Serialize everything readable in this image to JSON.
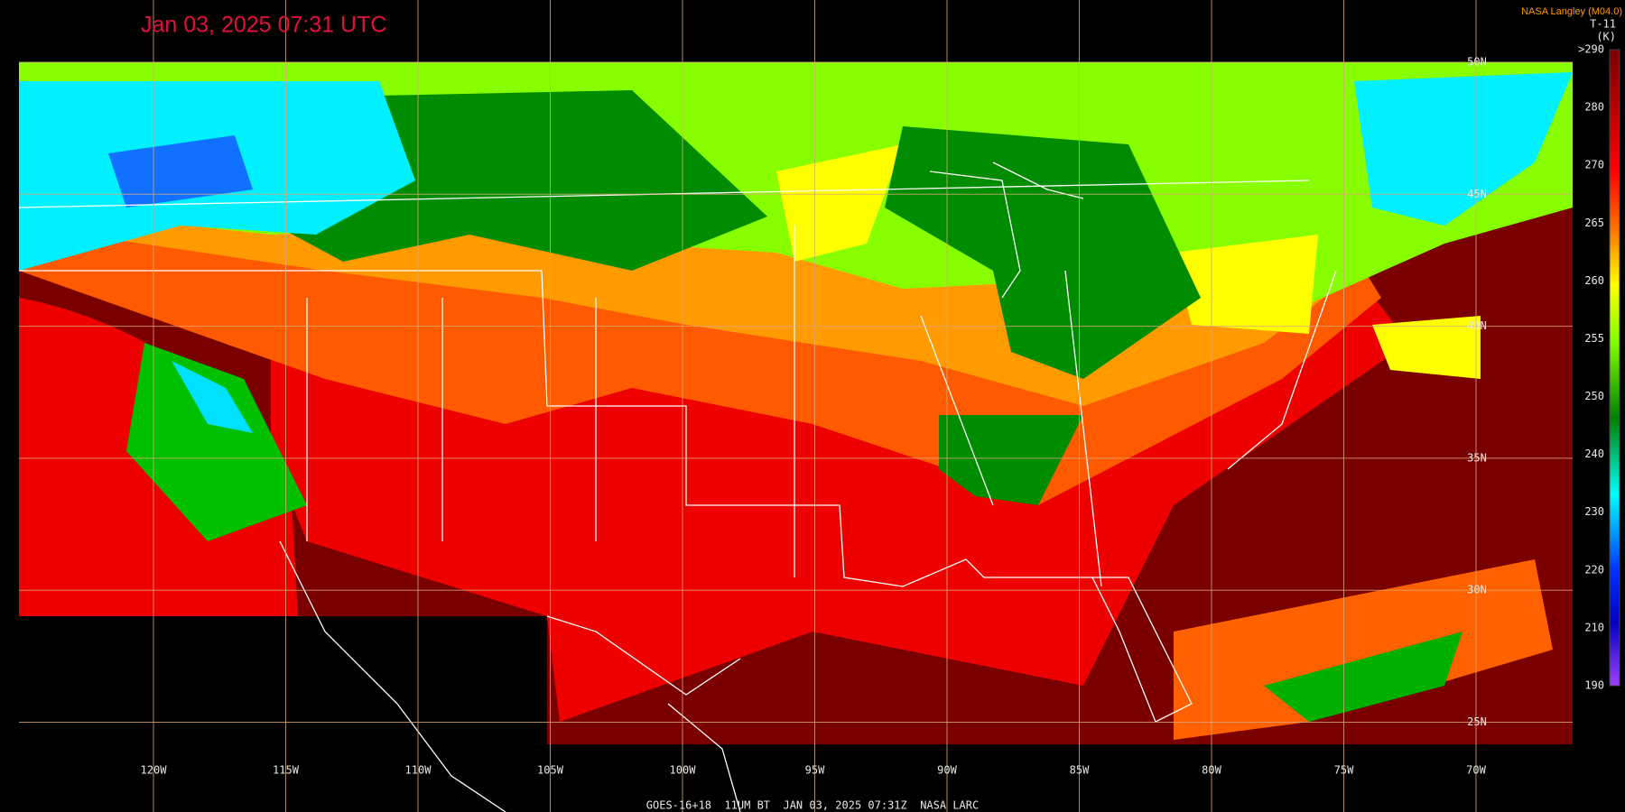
{
  "header": {
    "title": "Jan 03, 2025 07:31 UTC",
    "credit": "NASA Langley (M04.0)",
    "product": "T-11",
    "units": "(K)"
  },
  "colorbar": {
    "labels": [
      ">290",
      "280",
      "270",
      "265",
      "260",
      "255",
      "250",
      "240",
      "230",
      "220",
      "210",
      "190"
    ]
  },
  "longitudes": [
    "120W",
    "115W",
    "110W",
    "105W",
    "100W",
    "95W",
    "90W",
    "85W",
    "80W",
    "75W",
    "70W"
  ],
  "latitudes": [
    "50N",
    "45N",
    "40N",
    "35N",
    "30N",
    "25N"
  ],
  "footer": "GOES-16+18  11UM BT  JAN 03, 2025 07:31Z  NASA LARC"
}
